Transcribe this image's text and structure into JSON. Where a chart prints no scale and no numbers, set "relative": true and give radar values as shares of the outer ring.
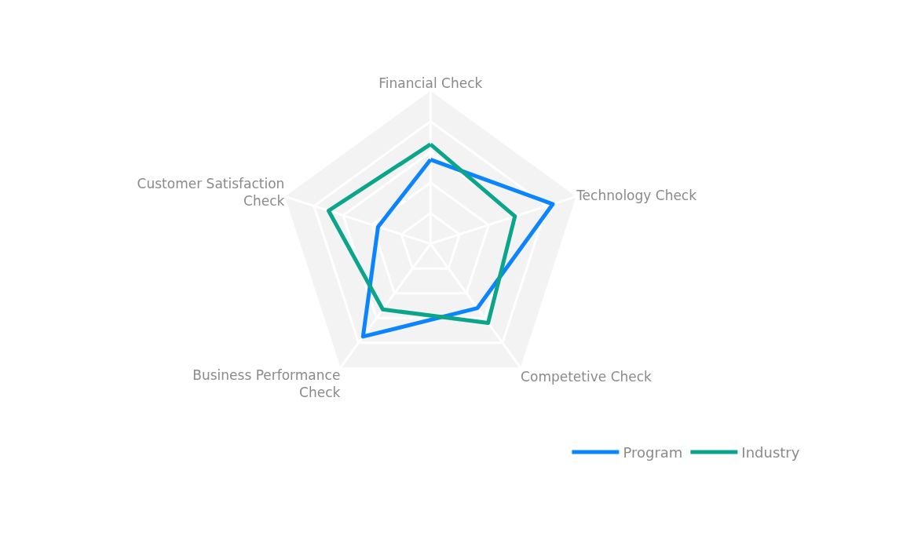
{
  "chart_data": {
    "type": "radar",
    "relative": true,
    "categories": [
      "Financial Check",
      "Technology Check",
      "Competetive Check",
      "Business Performance Check",
      "Customer Satisfaction Check"
    ],
    "series": [
      {
        "name": "Program",
        "color": "#0a84ff",
        "values": [
          0.55,
          0.84,
          0.52,
          0.75,
          0.36
        ]
      },
      {
        "name": "Industry",
        "color": "#0aa58a",
        "values": [
          0.65,
          0.58,
          0.64,
          0.53,
          0.7
        ]
      }
    ],
    "grid": true,
    "legend": "bottom right",
    "marker": "none",
    "line_style": "solid"
  }
}
